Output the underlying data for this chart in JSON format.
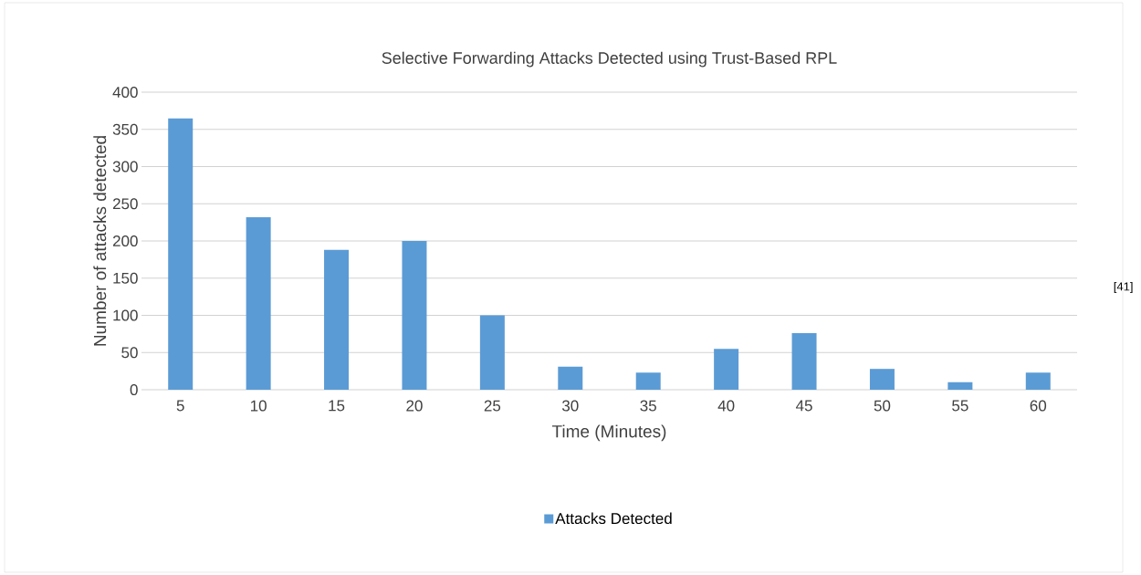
{
  "chart_data": {
    "type": "bar",
    "title": "Selective Forwarding Attacks Detected using Trust-Based RPL",
    "xlabel": "Time (Minutes)",
    "ylabel": "Number of attacks detected",
    "categories": [
      "5",
      "10",
      "15",
      "20",
      "25",
      "30",
      "35",
      "40",
      "45",
      "50",
      "55",
      "60"
    ],
    "series": [
      {
        "name": "Attacks Detected",
        "color": "#5b9bd5",
        "values": [
          365,
          232,
          188,
          200,
          100,
          31,
          23,
          55,
          76,
          28,
          10,
          23
        ]
      }
    ],
    "ylim": [
      0,
      400
    ],
    "yticks": [
      0,
      50,
      100,
      150,
      200,
      250,
      300,
      350,
      400
    ],
    "grid": "y",
    "legend": "bottom",
    "annotations": [
      "[41]"
    ]
  }
}
